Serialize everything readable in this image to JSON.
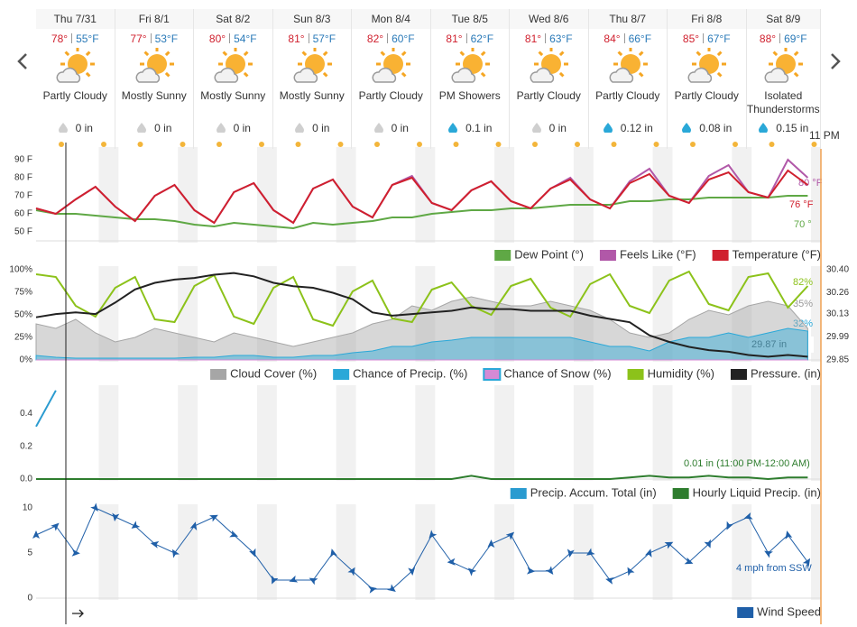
{
  "forecast": {
    "time_label": "11 PM",
    "days": [
      {
        "day": "Thu 7/31",
        "high": "78°",
        "low": "55°F",
        "condition": "Partly Cloudy",
        "precip": "0 in"
      },
      {
        "day": "Fri 8/1",
        "high": "77°",
        "low": "53°F",
        "condition": "Mostly Sunny",
        "precip": "0 in"
      },
      {
        "day": "Sat 8/2",
        "high": "80°",
        "low": "54°F",
        "condition": "Mostly Sunny",
        "precip": "0 in"
      },
      {
        "day": "Sun 8/3",
        "high": "81°",
        "low": "57°F",
        "condition": "Mostly Sunny",
        "precip": "0 in"
      },
      {
        "day": "Mon 8/4",
        "high": "82°",
        "low": "60°F",
        "condition": "Partly Cloudy",
        "precip": "0 in"
      },
      {
        "day": "Tue 8/5",
        "high": "81°",
        "low": "62°F",
        "condition": "PM Showers",
        "precip": "0.1 in"
      },
      {
        "day": "Wed 8/6",
        "high": "81°",
        "low": "63°F",
        "condition": "Partly Cloudy",
        "precip": "0 in"
      },
      {
        "day": "Thu 8/7",
        "high": "84°",
        "low": "66°F",
        "condition": "Partly Cloudy",
        "precip": "0.12 in"
      },
      {
        "day": "Fri 8/8",
        "high": "85°",
        "low": "67°F",
        "condition": "Partly Cloudy",
        "precip": "0.08 in"
      },
      {
        "day": "Sat 8/9",
        "high": "88°",
        "low": "69°F",
        "condition": "Isolated Thunderstorms",
        "precip": "0.15 in"
      }
    ]
  },
  "chart_data": [
    {
      "type": "line",
      "xlim": [
        0,
        238
      ],
      "ylim": [
        45,
        95
      ],
      "yticks": [
        {
          "value": 50,
          "label": "50 F"
        },
        {
          "value": 60,
          "label": "60 F"
        },
        {
          "value": 70,
          "label": "70 F"
        },
        {
          "value": 80,
          "label": "80 F"
        },
        {
          "value": 90,
          "label": "90 F"
        }
      ],
      "x": [
        0,
        6,
        12,
        18,
        24,
        30,
        36,
        42,
        48,
        54,
        60,
        66,
        72,
        78,
        84,
        90,
        96,
        102,
        108,
        114,
        120,
        126,
        132,
        138,
        144,
        150,
        156,
        162,
        168,
        174,
        180,
        186,
        192,
        198,
        204,
        210,
        216,
        222,
        228,
        234
      ],
      "series": [
        {
          "name": "Dew Point (°)",
          "color": "#5fa845",
          "type": "line",
          "values": [
            62,
            60,
            60,
            59,
            58,
            57,
            57,
            56,
            54,
            53,
            55,
            54,
            53,
            52,
            55,
            54,
            55,
            56,
            58,
            58,
            60,
            61,
            62,
            62,
            63,
            63,
            64,
            65,
            65,
            65,
            67,
            67,
            68,
            68,
            69,
            69,
            69,
            69,
            70,
            70
          ]
        },
        {
          "name": "Feels Like (°F)",
          "color": "#b158a8",
          "type": "line",
          "values": [
            63,
            60,
            68,
            75,
            64,
            56,
            70,
            76,
            62,
            55,
            72,
            77,
            62,
            55,
            74,
            79,
            64,
            58,
            76,
            81,
            66,
            62,
            73,
            78,
            67,
            63,
            74,
            80,
            68,
            63,
            78,
            85,
            70,
            66,
            81,
            87,
            72,
            69,
            90,
            80
          ]
        },
        {
          "name": "Temperature (°F)",
          "color": "#d0202e",
          "type": "line",
          "values": [
            63,
            60,
            68,
            75,
            64,
            56,
            70,
            76,
            62,
            55,
            72,
            77,
            62,
            55,
            74,
            79,
            64,
            58,
            76,
            80,
            66,
            62,
            73,
            78,
            67,
            63,
            74,
            79,
            68,
            63,
            77,
            82,
            70,
            66,
            79,
            83,
            72,
            69,
            84,
            76
          ]
        }
      ],
      "annotations": [
        "80 °F",
        "76 °F",
        "70 °"
      ]
    },
    {
      "type": "line",
      "xlim": [
        0,
        238
      ],
      "ylim": [
        0,
        100
      ],
      "y2lim": [
        29.85,
        30.4
      ],
      "yticks": [
        {
          "value": 0,
          "label": "0%"
        },
        {
          "value": 25,
          "label": "25%"
        },
        {
          "value": 50,
          "label": "50%"
        },
        {
          "value": 75,
          "label": "75%"
        },
        {
          "value": 100,
          "label": "100%"
        }
      ],
      "y2ticks": [
        29.85,
        29.99,
        30.13,
        30.26,
        {
          "value": 30.4,
          "label": "30.40"
        }
      ],
      "x": [
        0,
        6,
        12,
        18,
        24,
        30,
        36,
        42,
        48,
        54,
        60,
        66,
        72,
        78,
        84,
        90,
        96,
        102,
        108,
        114,
        120,
        126,
        132,
        138,
        144,
        150,
        156,
        162,
        168,
        174,
        180,
        186,
        192,
        198,
        204,
        210,
        216,
        222,
        228,
        234
      ],
      "series": [
        {
          "name": "Cloud Cover (%)",
          "color": "#a6a6a6",
          "type": "area",
          "values": [
            40,
            35,
            45,
            30,
            20,
            25,
            35,
            30,
            25,
            20,
            30,
            25,
            20,
            15,
            20,
            25,
            30,
            40,
            45,
            60,
            55,
            65,
            70,
            65,
            60,
            60,
            65,
            60,
            55,
            45,
            30,
            25,
            30,
            45,
            55,
            50,
            60,
            65,
            60,
            35
          ]
        },
        {
          "name": "Chance of Precip. (%)",
          "color": "#2aa8d8",
          "type": "area",
          "values": [
            5,
            3,
            2,
            2,
            2,
            2,
            2,
            2,
            3,
            3,
            5,
            5,
            3,
            3,
            5,
            5,
            8,
            10,
            15,
            15,
            20,
            22,
            25,
            25,
            25,
            25,
            25,
            25,
            20,
            15,
            15,
            10,
            20,
            25,
            25,
            30,
            25,
            30,
            35,
            32
          ]
        },
        {
          "name": "Chance of Snow (%)",
          "color": "#d58ad5",
          "type": "area",
          "values": [
            0,
            0,
            0,
            0,
            0,
            0,
            0,
            0,
            0,
            0,
            0,
            0,
            0,
            0,
            0,
            0,
            0,
            0,
            0,
            0,
            0,
            0,
            0,
            0,
            0,
            0,
            0,
            0,
            0,
            0,
            0,
            0,
            0,
            0,
            0,
            0,
            0,
            0,
            0,
            0
          ]
        },
        {
          "name": "Humidity (%)",
          "color": "#8cc21a",
          "type": "line",
          "values": [
            95,
            92,
            60,
            48,
            80,
            92,
            45,
            42,
            82,
            94,
            48,
            40,
            80,
            92,
            45,
            38,
            76,
            88,
            46,
            42,
            78,
            86,
            60,
            50,
            82,
            90,
            58,
            48,
            84,
            95,
            60,
            52,
            88,
            98,
            62,
            55,
            92,
            96,
            58,
            82
          ]
        },
        {
          "name": "Pressure. (in)",
          "color": "#222222",
          "type": "line",
          "axis": "y2",
          "values": [
            30.11,
            30.13,
            30.14,
            30.13,
            30.2,
            30.28,
            30.32,
            30.34,
            30.35,
            30.37,
            30.38,
            30.36,
            30.32,
            30.3,
            30.29,
            30.26,
            30.22,
            30.14,
            30.12,
            30.13,
            30.14,
            30.15,
            30.17,
            30.16,
            30.16,
            30.15,
            30.15,
            30.15,
            30.12,
            30.1,
            30.08,
            30.0,
            29.96,
            29.93,
            29.91,
            29.9,
            29.88,
            29.87,
            29.88,
            29.87
          ]
        }
      ],
      "annotations": [
        "82%",
        "35%",
        "32%",
        "29.87 in"
      ]
    },
    {
      "type": "line",
      "xlim": [
        0,
        238
      ],
      "ylim": [
        0,
        0.55
      ],
      "yticks": [
        {
          "value": 0,
          "label": "0.0"
        },
        0.2,
        0.4
      ],
      "x": [
        0,
        6,
        12,
        18,
        24,
        30,
        36,
        42,
        48,
        54,
        60,
        66,
        72,
        78,
        84,
        90,
        96,
        102,
        108,
        114,
        120,
        126,
        132,
        138,
        144,
        150,
        156,
        162,
        168,
        174,
        180,
        186,
        192,
        198,
        204,
        210,
        216,
        222,
        228,
        234
      ],
      "series": [
        {
          "name": "Precip. Accum. Total (in)",
          "color": "#2a9bd0",
          "type": "line",
          "values": [
            0.32,
            0.54,
            null,
            null,
            null,
            null,
            null,
            null,
            null,
            null,
            null,
            null,
            null,
            null,
            null,
            null,
            null,
            null,
            null,
            null,
            null,
            null,
            null,
            null,
            null,
            null,
            null,
            null,
            null,
            null,
            null,
            null,
            null,
            null,
            null,
            null,
            null,
            null,
            null,
            null
          ]
        },
        {
          "name": "Hourly Liquid Precip. (in)",
          "color": "#2e7d2e",
          "type": "line",
          "values": [
            0,
            0,
            0,
            0,
            0,
            0,
            0,
            0,
            0,
            0,
            0,
            0,
            0,
            0,
            0,
            0,
            0,
            0,
            0,
            0,
            0,
            0,
            0.02,
            0,
            0,
            0,
            0,
            0,
            0,
            0,
            0.01,
            0.02,
            0.01,
            0.01,
            0.02,
            0.01,
            0.01,
            0,
            0.01,
            0.01
          ]
        }
      ],
      "annotations": [
        "0.01 in (11:00 PM-12:00 AM)"
      ]
    },
    {
      "type": "line",
      "xlim": [
        0,
        238
      ],
      "ylim": [
        0,
        10
      ],
      "yticks": [
        0,
        5,
        10
      ],
      "x": [
        0,
        6,
        12,
        18,
        24,
        30,
        36,
        42,
        48,
        54,
        60,
        66,
        72,
        78,
        84,
        90,
        96,
        102,
        108,
        114,
        120,
        126,
        132,
        138,
        144,
        150,
        156,
        162,
        168,
        174,
        180,
        186,
        192,
        198,
        204,
        210,
        216,
        222,
        228,
        234
      ],
      "series": [
        {
          "name": "Wind Speed",
          "color": "#1f5fa8",
          "type": "line",
          "values": [
            7,
            8,
            5,
            10,
            9,
            8,
            6,
            5,
            8,
            9,
            7,
            5,
            2,
            2,
            2,
            5,
            3,
            1,
            1,
            3,
            7,
            4,
            3,
            6,
            7,
            3,
            3,
            5,
            5,
            2,
            3,
            5,
            6,
            4,
            6,
            8,
            9,
            5,
            7,
            4
          ]
        }
      ],
      "annotations": [
        "4 mph from SSW"
      ]
    }
  ]
}
